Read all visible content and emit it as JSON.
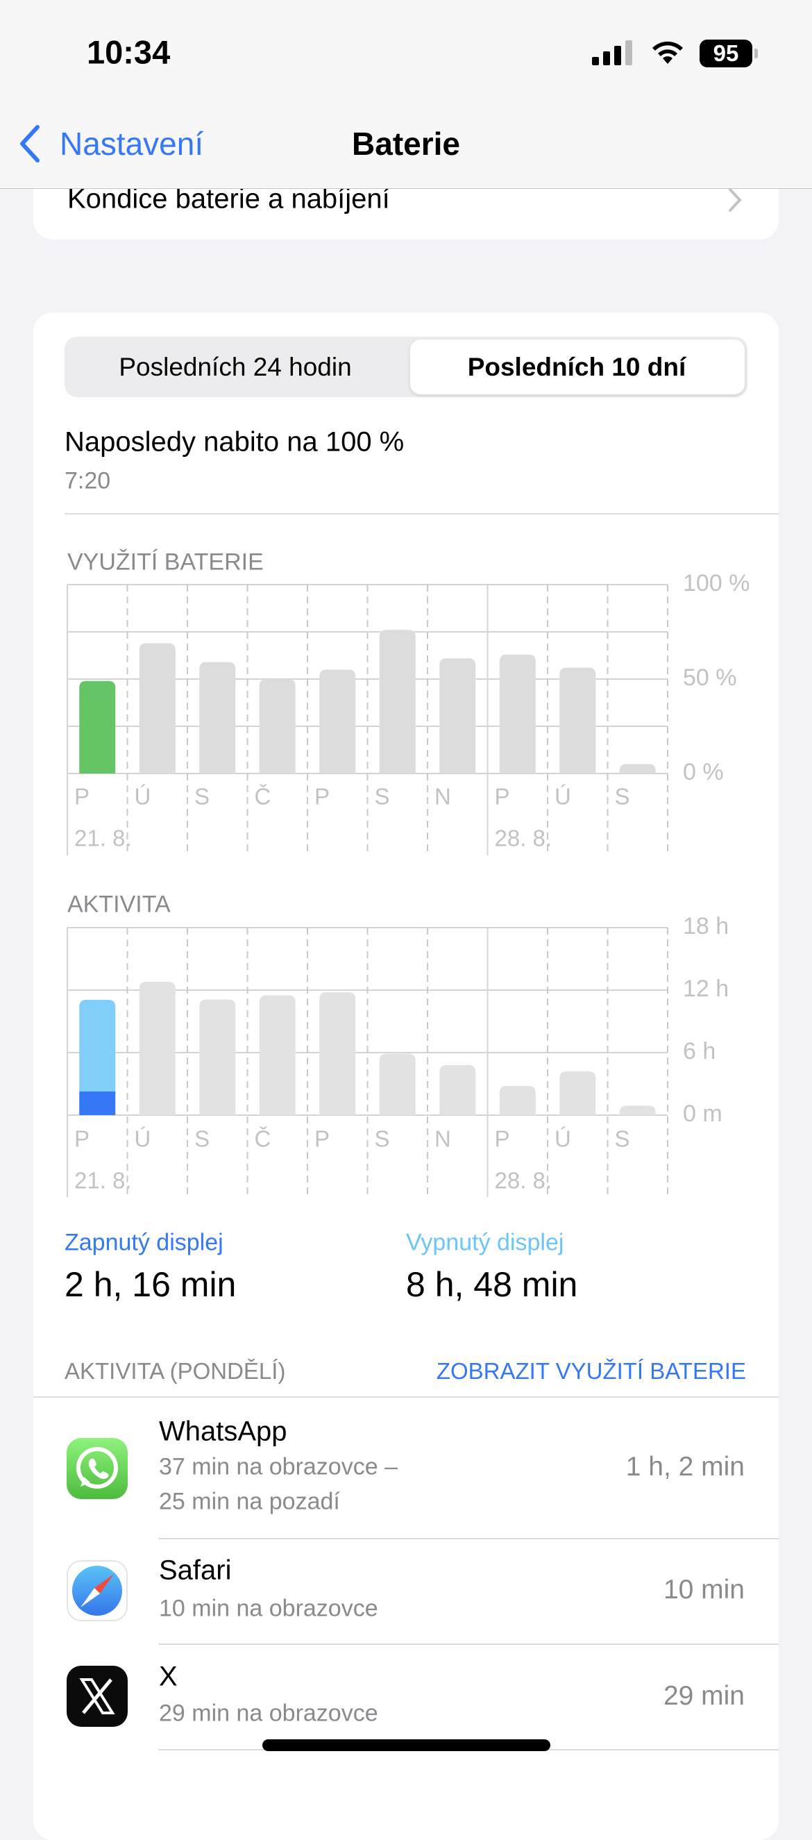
{
  "status_bar": {
    "time": "10:34",
    "battery": "95"
  },
  "nav": {
    "back_label": "Nastavení",
    "title": "Baterie"
  },
  "health_row": {
    "label": "Kondice baterie a nabíjení"
  },
  "segments": {
    "options": [
      "Posledních 24 hodin",
      "Posledních 10 dní"
    ],
    "selected": "Posledních 10 dní"
  },
  "last_charge": {
    "label": "Naposledy nabito na 100 %",
    "time": "7:20"
  },
  "chart_data": [
    {
      "type": "bar",
      "title": "VYUŽITÍ BATERIE",
      "categories": [
        "P",
        "Ú",
        "S",
        "Č",
        "P",
        "S",
        "N",
        "P",
        "Ú",
        "S"
      ],
      "date_labels": [
        "21. 8.",
        "",
        "",
        "",
        "",
        "",
        "",
        "28. 8.",
        "",
        ""
      ],
      "values": [
        49,
        69,
        59,
        50,
        55,
        76,
        61,
        63,
        56,
        5
      ],
      "highlight_index": 0,
      "highlight_color": "#65c466",
      "bar_color": "#dcdcdc",
      "yticks": [
        "100 %",
        "50 %",
        "0 %"
      ],
      "ylim": [
        0,
        100
      ],
      "grid": true
    },
    {
      "type": "bar",
      "title": "AKTIVITA",
      "categories": [
        "P",
        "Ú",
        "S",
        "Č",
        "P",
        "S",
        "N",
        "P",
        "Ú",
        "S"
      ],
      "date_labels": [
        "21. 8.",
        "",
        "",
        "",
        "",
        "",
        "",
        "28. 8.",
        "",
        ""
      ],
      "values": [
        11.07,
        12.8,
        11.1,
        11.5,
        11.8,
        5.9,
        4.8,
        2.8,
        4.2,
        0.9
      ],
      "highlight_index": 0,
      "highlight_series": [
        {
          "name": "Zapnutý displej",
          "value": 2.27,
          "color": "#3478f6"
        },
        {
          "name": "Vypnutý displej",
          "value": 8.8,
          "color": "#81cefa"
        }
      ],
      "bar_color": "#e2e2e2",
      "yticks": [
        "18 h",
        "12 h",
        "6 h",
        "0 m"
      ],
      "ylim": [
        0,
        18
      ],
      "grid": true
    }
  ],
  "screen_stats": {
    "on_label": "Zapnutý displej",
    "on_value": "2 h, 16 min",
    "on_color": "#3478f6",
    "off_label": "Vypnutý displej",
    "off_value": "8 h, 48 min",
    "off_color": "#6cc4f8"
  },
  "activity": {
    "header": "AKTIVITA (PONDĚLÍ)",
    "link": "ZOBRAZIT VYUŽITÍ BATERIE",
    "apps": [
      {
        "name": "WhatsApp",
        "detail1": "37 min na obrazovce –",
        "detail2": "25 min na pozadí",
        "value": "1 h, 2 min",
        "icon": "whatsapp-icon"
      },
      {
        "name": "Safari",
        "detail1": "10 min na obrazovce",
        "value": "10 min",
        "icon": "safari-icon"
      },
      {
        "name": "X",
        "detail1": "29 min na obrazovce",
        "value": "29 min",
        "icon": "x-icon"
      }
    ]
  }
}
